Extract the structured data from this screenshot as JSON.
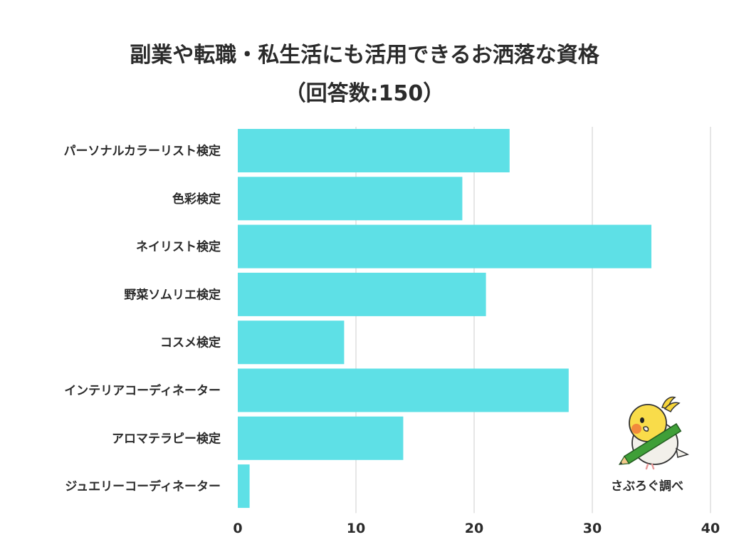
{
  "title": {
    "line1": "副業や転職・私生活にも活用できるお洒落な資格",
    "line2": "（回答数:150）"
  },
  "credit": "さぶろぐ調べ",
  "mascot_icon": "cockatiel-with-pencil-icon",
  "colors": {
    "bar": "#5ee0e6",
    "grid": "#dddddd",
    "text": "#2b2b2b"
  },
  "chart_data": {
    "type": "bar",
    "orientation": "horizontal",
    "categories": [
      "パーソナルカラーリスト検定",
      "色彩検定",
      "ネイリスト検定",
      "野菜ソムリエ検定",
      "コスメ検定",
      "インテリアコーディネーター",
      "アロマテラピー検定",
      "ジュエリーコーディネーター"
    ],
    "values": [
      23,
      19,
      35,
      21,
      9,
      28,
      14,
      1
    ],
    "xticks": [
      0,
      10,
      20,
      30,
      40
    ],
    "xlim": [
      0,
      40
    ],
    "grid": true,
    "legend": "none"
  }
}
